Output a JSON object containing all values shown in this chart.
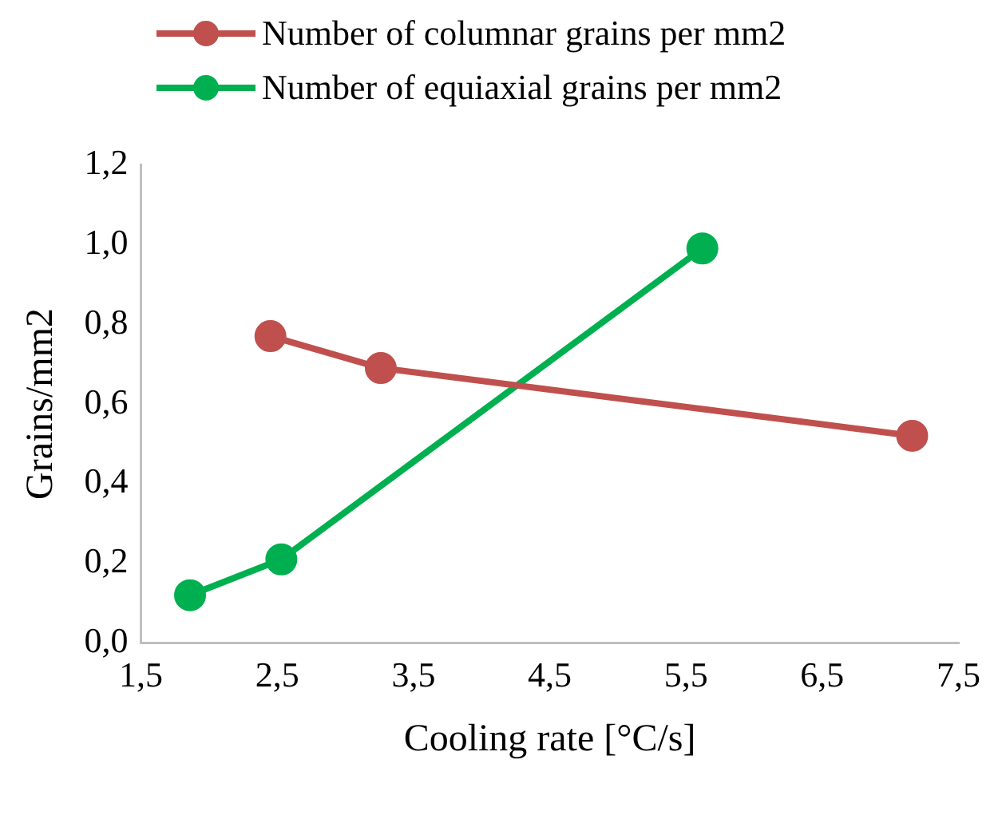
{
  "chart_data": {
    "type": "line",
    "xlabel": "Cooling rate [°C/s]",
    "ylabel": "Grains/mm2",
    "xlim": [
      1.5,
      7.5
    ],
    "xticks": [
      {
        "value": 1.5,
        "label": "1,5"
      },
      {
        "value": 2.5,
        "label": "2,5"
      },
      {
        "value": 3.5,
        "label": "3,5"
      },
      {
        "value": 4.5,
        "label": "4,5"
      },
      {
        "value": 5.5,
        "label": "5,5"
      },
      {
        "value": 6.5,
        "label": "6,5"
      },
      {
        "value": 7.5,
        "label": "7,5"
      }
    ],
    "ylim": [
      0,
      1.2
    ],
    "yticks": [
      {
        "value": 0,
        "label": "0,0"
      },
      {
        "value": 0.2,
        "label": "0,2"
      },
      {
        "value": 0.4,
        "label": "0,4"
      },
      {
        "value": 0.6,
        "label": "0,6"
      },
      {
        "value": 0.8,
        "label": "0,8"
      },
      {
        "value": 1.0,
        "label": "1,0"
      },
      {
        "value": 1.2,
        "label": "1,2"
      }
    ],
    "grid": false,
    "legend": "top left",
    "marker": "circle",
    "line_style": "solid",
    "series": [
      {
        "name": "Number of columnar grains per mm2",
        "color": "#c0504d",
        "x": [
          2.45,
          3.26,
          7.16
        ],
        "values": [
          0.77,
          0.69,
          0.52
        ]
      },
      {
        "name": "Number of equiaxial grains per mm2",
        "color": "#00b050",
        "x": [
          1.86,
          2.53,
          5.62
        ],
        "values": [
          0.12,
          0.21,
          0.99
        ]
      }
    ]
  }
}
